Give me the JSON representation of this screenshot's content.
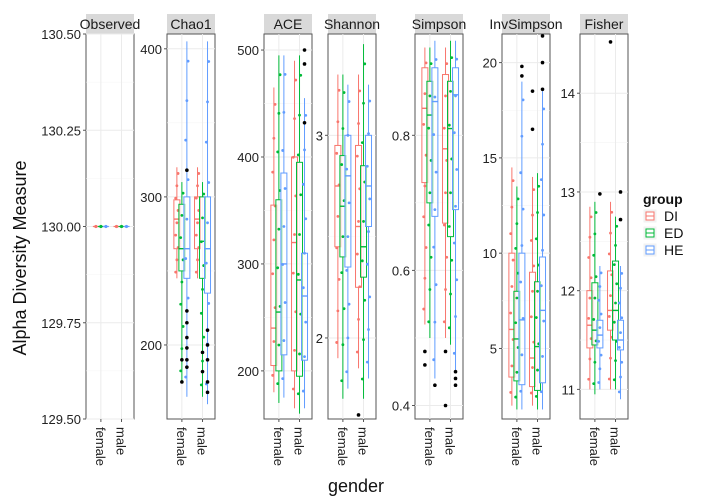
{
  "chart_data": {
    "type": "box",
    "ylabel": "Alpha Diversity Measure",
    "xlabel": "gender",
    "categories": [
      "female",
      "male"
    ],
    "legend": {
      "title": "group",
      "placement": "right",
      "entries": [
        {
          "name": "DI",
          "color": "#F8766D"
        },
        {
          "name": "ED",
          "color": "#00BA38"
        },
        {
          "name": "HE",
          "color": "#619CFF"
        }
      ]
    },
    "panels": [
      {
        "title": "Observed",
        "ylim": [
          129.5,
          130.5
        ],
        "yticks": [
          129.5,
          129.75,
          130.0,
          130.25,
          130.5
        ],
        "ytick_labels": [
          "129.50",
          "129.75",
          "130.00",
          "130.25",
          "130.50"
        ],
        "boxes": [
          {
            "x": "female",
            "group": "DI",
            "q1": 130,
            "med": 130,
            "q3": 130,
            "lo": 130,
            "hi": 130
          },
          {
            "x": "female",
            "group": "ED",
            "q1": 130,
            "med": 130,
            "q3": 130,
            "lo": 130,
            "hi": 130
          },
          {
            "x": "female",
            "group": "HE",
            "q1": 130,
            "med": 130,
            "q3": 130,
            "lo": 130,
            "hi": 130
          },
          {
            "x": "male",
            "group": "DI",
            "q1": 130,
            "med": 130,
            "q3": 130,
            "lo": 130,
            "hi": 130
          },
          {
            "x": "male",
            "group": "ED",
            "q1": 130,
            "med": 130,
            "q3": 130,
            "lo": 130,
            "hi": 130
          },
          {
            "x": "male",
            "group": "HE",
            "q1": 130,
            "med": 130,
            "q3": 130,
            "lo": 130,
            "hi": 130
          }
        ],
        "outliers": []
      },
      {
        "title": "Chao1",
        "ylim": [
          150,
          410
        ],
        "yticks": [
          200,
          300,
          400
        ],
        "ytick_labels": [
          "200",
          "300",
          "400"
        ],
        "boxes": [
          {
            "x": "female",
            "group": "DI",
            "q1": 265,
            "med": 285,
            "q3": 298,
            "lo": 245,
            "hi": 320
          },
          {
            "x": "female",
            "group": "ED",
            "q1": 250,
            "med": 265,
            "q3": 295,
            "lo": 175,
            "hi": 310
          },
          {
            "x": "female",
            "group": "HE",
            "q1": 245,
            "med": 265,
            "q3": 300,
            "lo": 165,
            "hi": 405
          },
          {
            "x": "male",
            "group": "DI",
            "q1": 265,
            "med": 285,
            "q3": 300,
            "lo": 245,
            "hi": 320
          },
          {
            "x": "male",
            "group": "ED",
            "q1": 245,
            "med": 270,
            "q3": 300,
            "lo": 165,
            "hi": 310
          },
          {
            "x": "male",
            "group": "HE",
            "q1": 235,
            "med": 265,
            "q3": 300,
            "lo": 160,
            "hi": 405
          }
        ],
        "outliers": [
          {
            "x": "female",
            "group": "ED",
            "y": 175
          },
          {
            "x": "female",
            "group": "ED",
            "y": 190
          },
          {
            "x": "female",
            "group": "HE",
            "y": 318
          },
          {
            "x": "female",
            "group": "HE",
            "y": 223
          },
          {
            "x": "female",
            "group": "HE",
            "y": 215
          },
          {
            "x": "female",
            "group": "HE",
            "y": 205
          },
          {
            "x": "female",
            "group": "HE",
            "y": 198
          },
          {
            "x": "female",
            "group": "HE",
            "y": 190
          },
          {
            "x": "female",
            "group": "HE",
            "y": 185
          },
          {
            "x": "male",
            "group": "ED",
            "y": 182
          },
          {
            "x": "male",
            "group": "ED",
            "y": 195
          },
          {
            "x": "male",
            "group": "HE",
            "y": 210
          },
          {
            "x": "male",
            "group": "HE",
            "y": 200
          },
          {
            "x": "male",
            "group": "HE",
            "y": 190
          },
          {
            "x": "male",
            "group": "HE",
            "y": 175
          },
          {
            "x": "male",
            "group": "HE",
            "y": 168
          }
        ]
      },
      {
        "title": "ACE",
        "ylim": [
          155,
          515
        ],
        "yticks": [
          200,
          300,
          400,
          500
        ],
        "ytick_labels": [
          "200",
          "300",
          "400",
          "500"
        ],
        "boxes": [
          {
            "x": "female",
            "group": "DI",
            "q1": 205,
            "med": 240,
            "q3": 355,
            "lo": 180,
            "hi": 465
          },
          {
            "x": "female",
            "group": "ED",
            "q1": 200,
            "med": 255,
            "q3": 360,
            "lo": 170,
            "hi": 495
          },
          {
            "x": "female",
            "group": "HE",
            "q1": 215,
            "med": 300,
            "q3": 385,
            "lo": 175,
            "hi": 495
          },
          {
            "x": "male",
            "group": "DI",
            "q1": 200,
            "med": 320,
            "q3": 400,
            "lo": 165,
            "hi": 490
          },
          {
            "x": "male",
            "group": "ED",
            "q1": 195,
            "med": 285,
            "q3": 395,
            "lo": 160,
            "hi": 495
          },
          {
            "x": "male",
            "group": "HE",
            "q1": 210,
            "med": 270,
            "q3": 310,
            "lo": 165,
            "hi": 455
          }
        ],
        "outliers": [
          {
            "x": "male",
            "group": "HE",
            "y": 500
          },
          {
            "x": "male",
            "group": "HE",
            "y": 487
          },
          {
            "x": "male",
            "group": "HE",
            "y": 432
          }
        ]
      },
      {
        "title": "Shannon",
        "ylim": [
          1.6,
          3.5
        ],
        "yticks": [
          2,
          3
        ],
        "ytick_labels": [
          "2",
          "3"
        ],
        "boxes": [
          {
            "x": "female",
            "group": "DI",
            "q1": 2.45,
            "med": 2.75,
            "q3": 2.95,
            "lo": 1.9,
            "hi": 3.3
          },
          {
            "x": "female",
            "group": "ED",
            "q1": 2.4,
            "med": 2.65,
            "q3": 2.9,
            "lo": 1.7,
            "hi": 3.3
          },
          {
            "x": "female",
            "group": "HE",
            "q1": 2.35,
            "med": 2.8,
            "q3": 3.0,
            "lo": 1.75,
            "hi": 3.25
          },
          {
            "x": "male",
            "group": "DI",
            "q1": 2.25,
            "med": 2.55,
            "q3": 2.95,
            "lo": 1.85,
            "hi": 3.3
          },
          {
            "x": "male",
            "group": "ED",
            "q1": 2.3,
            "med": 2.45,
            "q3": 2.85,
            "lo": 1.7,
            "hi": 3.45
          },
          {
            "x": "male",
            "group": "HE",
            "q1": 2.55,
            "med": 2.75,
            "q3": 3.0,
            "lo": 1.8,
            "hi": 3.25
          }
        ],
        "outliers": [
          {
            "x": "male",
            "group": "DI",
            "y": 1.62
          }
        ]
      },
      {
        "title": "Simpson",
        "ylim": [
          0.38,
          0.95
        ],
        "yticks": [
          0.4,
          0.6,
          0.8
        ],
        "ytick_labels": [
          "0.4",
          "0.6",
          "0.8"
        ],
        "boxes": [
          {
            "x": "female",
            "group": "DI",
            "q1": 0.73,
            "med": 0.84,
            "q3": 0.9,
            "lo": 0.52,
            "hi": 0.93
          },
          {
            "x": "female",
            "group": "ED",
            "q1": 0.7,
            "med": 0.83,
            "q3": 0.88,
            "lo": 0.5,
            "hi": 0.93
          },
          {
            "x": "female",
            "group": "HE",
            "q1": 0.68,
            "med": 0.85,
            "q3": 0.9,
            "lo": 0.44,
            "hi": 0.94
          },
          {
            "x": "male",
            "group": "DI",
            "q1": 0.67,
            "med": 0.78,
            "q3": 0.89,
            "lo": 0.5,
            "hi": 0.93
          },
          {
            "x": "male",
            "group": "ED",
            "q1": 0.65,
            "med": 0.81,
            "q3": 0.88,
            "lo": 0.49,
            "hi": 0.94
          },
          {
            "x": "male",
            "group": "HE",
            "q1": 0.69,
            "med": 0.86,
            "q3": 0.9,
            "lo": 0.45,
            "hi": 0.94
          }
        ],
        "outliers": [
          {
            "x": "female",
            "group": "DI",
            "y": 0.48
          },
          {
            "x": "female",
            "group": "DI",
            "y": 0.46
          },
          {
            "x": "female",
            "group": "HE",
            "y": 0.43
          },
          {
            "x": "male",
            "group": "DI",
            "y": 0.48
          },
          {
            "x": "male",
            "group": "DI",
            "y": 0.4
          },
          {
            "x": "male",
            "group": "HE",
            "y": 0.45
          },
          {
            "x": "male",
            "group": "HE",
            "y": 0.44
          },
          {
            "x": "male",
            "group": "HE",
            "y": 0.43
          }
        ]
      },
      {
        "title": "InvSimpson",
        "ylim": [
          1.3,
          21.5
        ],
        "yticks": [
          5,
          10,
          15,
          20
        ],
        "ytick_labels": [
          "5",
          "10",
          "15",
          "20"
        ],
        "boxes": [
          {
            "x": "female",
            "group": "DI",
            "q1": 3.5,
            "med": 6.0,
            "q3": 10.0,
            "lo": 2.0,
            "hi": 14.5
          },
          {
            "x": "female",
            "group": "ED",
            "q1": 3.3,
            "med": 5.5,
            "q3": 8.0,
            "lo": 1.8,
            "hi": 13.5
          },
          {
            "x": "female",
            "group": "HE",
            "q1": 3.1,
            "med": 6.5,
            "q3": 10.0,
            "lo": 1.8,
            "hi": 19.0
          },
          {
            "x": "male",
            "group": "DI",
            "q1": 3.0,
            "med": 4.5,
            "q3": 9.0,
            "lo": 2.0,
            "hi": 14.0
          },
          {
            "x": "male",
            "group": "ED",
            "q1": 2.8,
            "med": 5.1,
            "q3": 8.5,
            "lo": 1.8,
            "hi": 14.2
          },
          {
            "x": "male",
            "group": "HE",
            "q1": 3.2,
            "med": 7.0,
            "q3": 9.8,
            "lo": 1.8,
            "hi": 18.5
          }
        ],
        "outliers": [
          {
            "x": "female",
            "group": "HE",
            "y": 19.8
          },
          {
            "x": "female",
            "group": "HE",
            "y": 19.3
          },
          {
            "x": "male",
            "group": "DI",
            "y": 18.5
          },
          {
            "x": "male",
            "group": "DI",
            "y": 16.5
          },
          {
            "x": "male",
            "group": "HE",
            "y": 21.4
          },
          {
            "x": "male",
            "group": "HE",
            "y": 20.0
          },
          {
            "x": "male",
            "group": "HE",
            "y": 18.6
          }
        ]
      },
      {
        "title": "Fisher",
        "ylim": [
          10.7,
          14.6
        ],
        "yticks": [
          11,
          12,
          13,
          14
        ],
        "ytick_labels": [
          "11",
          "12",
          "13",
          "14"
        ],
        "boxes": [
          {
            "x": "female",
            "group": "DI",
            "q1": 11.42,
            "med": 11.65,
            "q3": 12.0,
            "lo": 11.0,
            "hi": 12.85
          },
          {
            "x": "female",
            "group": "ED",
            "q1": 11.45,
            "med": 11.6,
            "q3": 12.08,
            "lo": 10.95,
            "hi": 12.9
          },
          {
            "x": "female",
            "group": "HE",
            "q1": 11.42,
            "med": 11.55,
            "q3": 11.7,
            "lo": 11.0,
            "hi": 12.25
          },
          {
            "x": "male",
            "group": "DI",
            "q1": 11.6,
            "med": 11.8,
            "q3": 12.2,
            "lo": 11.0,
            "hi": 12.9
          },
          {
            "x": "male",
            "group": "ED",
            "q1": 11.5,
            "med": 11.8,
            "q3": 12.3,
            "lo": 11.0,
            "hi": 12.75
          },
          {
            "x": "male",
            "group": "HE",
            "q1": 11.4,
            "med": 11.5,
            "q3": 11.7,
            "lo": 10.9,
            "hi": 12.25
          }
        ],
        "outliers": [
          {
            "x": "female",
            "group": "HE",
            "y": 12.98
          },
          {
            "x": "male",
            "group": "DI",
            "y": 14.52
          },
          {
            "x": "male",
            "group": "HE",
            "y": 13.0
          },
          {
            "x": "male",
            "group": "HE",
            "y": 12.72
          }
        ]
      }
    ]
  }
}
